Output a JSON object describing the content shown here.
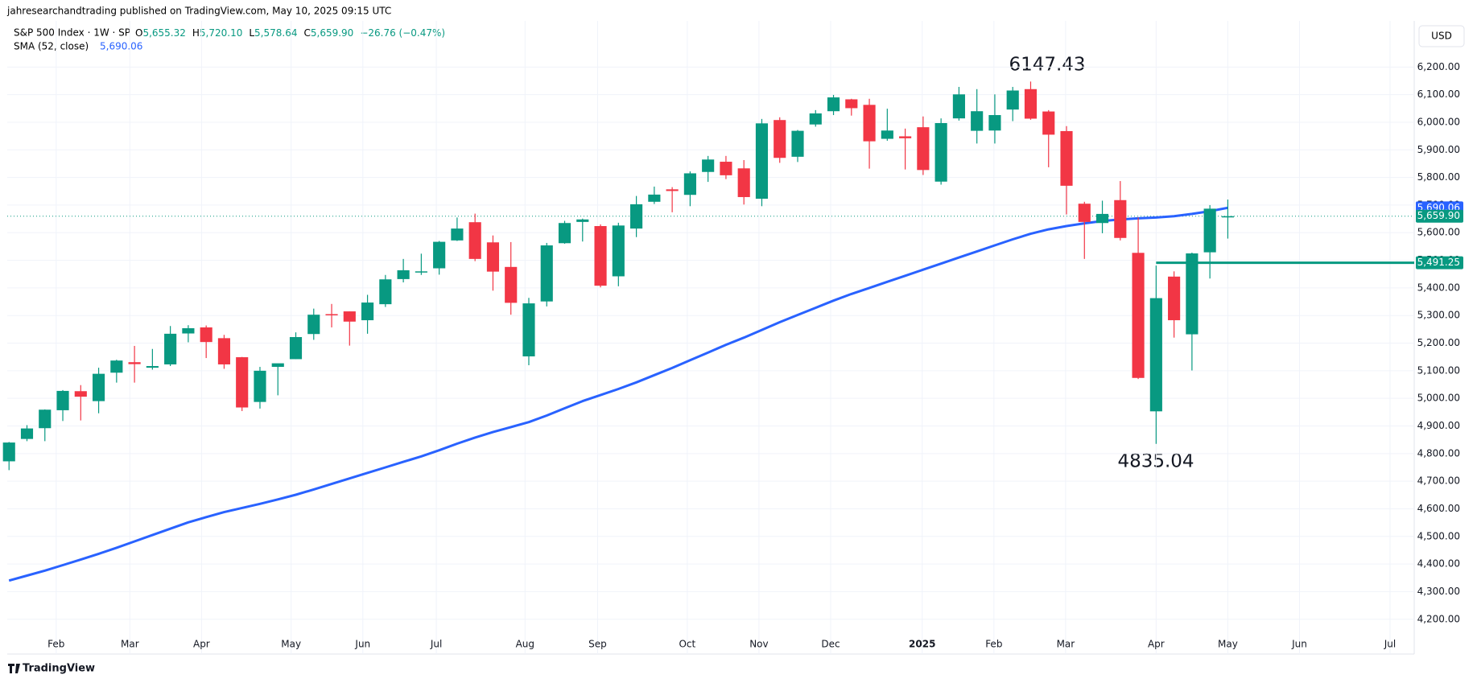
{
  "header": "jahresearchandtrading published on TradingView.com, May 10, 2025 09:15 UTC",
  "currency": "USD",
  "footer": "TradingView",
  "legend": {
    "symbol": "S&P 500 Index · 1W · SP",
    "ohlc": [
      {
        "key": "O",
        "value": "5,655.32"
      },
      {
        "key": "H",
        "value": "5,720.10"
      },
      {
        "key": "L",
        "value": "5,578.64"
      },
      {
        "key": "C",
        "value": "5,659.90"
      }
    ],
    "change": "−26.76 (−0.47%)",
    "sma_name": "SMA (52, close)",
    "sma_value": "5,690.06"
  },
  "chart_data": {
    "type": "candlestick",
    "annotations": [
      "6147.43",
      "4835.04"
    ],
    "up_color": "#089981",
    "down_color": "#f23645",
    "open": [
      4772,
      4853,
      4892,
      4957,
      5026,
      4990,
      5093,
      5131,
      5111,
      5123,
      5235,
      5257,
      5218,
      5149,
      4987,
      5114,
      5142,
      5233,
      5305,
      5315,
      5283,
      5341,
      5432,
      5459,
      5471,
      5572,
      5638,
      5565,
      5476,
      5152,
      5351,
      5562,
      5639,
      5624,
      5442,
      5615,
      5712,
      5757,
      5737,
      5820,
      5857,
      5833,
      5723,
      6008,
      5875,
      5992,
      6040,
      6083,
      6063,
      5940,
      5949,
      5982,
      5785,
      6014,
      5969,
      5970,
      6046,
      6120,
      6039,
      5968,
      5705,
      5635,
      5718,
      5527,
      4953,
      5441,
      5232,
      5529,
      5655.32
    ],
    "high": [
      4842,
      4903,
      4960,
      5030,
      5048,
      5111,
      5140,
      5190,
      5179,
      5262,
      5265,
      5264,
      5230,
      5150,
      5114,
      5123,
      5239,
      5325,
      5342,
      5315,
      5375,
      5447,
      5505,
      5524,
      5570,
      5655,
      5669,
      5590,
      5566,
      5364,
      5563,
      5643,
      5651,
      5630,
      5636,
      5733,
      5767,
      5765,
      5822,
      5878,
      5878,
      5863,
      6012,
      6018,
      5972,
      6044,
      6099,
      6085,
      6085,
      6049,
      5977,
      6021,
      6014,
      6128,
      6120,
      6101,
      6128,
      6147.43,
      6044,
      5986,
      5712,
      5716,
      5787,
      5655,
      5481,
      5460,
      5528,
      5700,
      5720.1
    ],
    "low": [
      4740,
      4845,
      4845,
      4918,
      4920,
      4946,
      5057,
      5057,
      5104,
      5117,
      5203,
      5146,
      5107,
      4954,
      4963,
      5011,
      5142,
      5212,
      5257,
      5191,
      5234,
      5331,
      5420,
      5447,
      5448,
      5570,
      5497,
      5390,
      5303,
      5120,
      5333,
      5560,
      5568,
      5402,
      5406,
      5584,
      5704,
      5674,
      5696,
      5784,
      5794,
      5702,
      5696,
      5853,
      5856,
      5984,
      6026,
      6024,
      5832,
      5933,
      5829,
      5809,
      5774,
      6006,
      5923,
      5923,
      6004,
      6009,
      5837,
      5666,
      5505,
      5598,
      5572,
      5070,
      4835.04,
      5220,
      5101,
      5434,
      5578.64
    ],
    "close": [
      4840,
      4891,
      4959,
      5027,
      5006,
      5089,
      5137,
      5124,
      5117,
      5234,
      5254,
      5204,
      5123,
      4967,
      5100,
      5127,
      5222,
      5303,
      5304,
      5278,
      5347,
      5431,
      5464,
      5460,
      5567,
      5615,
      5505,
      5459,
      5346,
      5344,
      5554,
      5635,
      5648,
      5408,
      5626,
      5703,
      5738,
      5751,
      5815,
      5865,
      5808,
      5729,
      5996,
      5871,
      5969,
      6032,
      6090,
      6051,
      5931,
      5970,
      5942,
      5827,
      5997,
      6101,
      6040,
      6026,
      6115,
      6013,
      5955,
      5770,
      5639,
      5668,
      5581,
      5074,
      5363,
      5283,
      5525,
      5687,
      5659.9
    ],
    "series": [
      {
        "name": "SMA (52, close)",
        "color": "#2962ff",
        "values": [
          4340,
          4358,
          4376,
          4396,
          4416,
          4437,
          4459,
          4482,
          4505,
          4528,
          4551,
          4570,
          4588,
          4603,
          4618,
          4634,
          4651,
          4670,
          4690,
          4710,
          4730,
          4750,
          4770,
          4790,
          4812,
          4836,
          4858,
          4878,
          4896,
          4914,
          4938,
          4964,
          4990,
          5012,
          5034,
          5058,
          5084,
          5110,
          5138,
          5166,
          5194,
          5220,
          5248,
          5276,
          5302,
          5328,
          5354,
          5378,
          5400,
          5422,
          5444,
          5466,
          5488,
          5510,
          5532,
          5554,
          5576,
          5596,
          5612,
          5624,
          5634,
          5642,
          5648,
          5652,
          5655,
          5660,
          5668,
          5678,
          5690.06
        ]
      }
    ],
    "level": {
      "value": 5491.25,
      "from": 64
    },
    "price_labels": [
      {
        "value": 5690.06,
        "label": "5,690.06",
        "color": "#2962ff"
      },
      {
        "value": 5659.9,
        "label": "5,659.90",
        "color": "#089981"
      },
      {
        "value": 5491.25,
        "label": "5,491.25",
        "color": "#089981"
      }
    ],
    "xlim": [
      -0.1,
      78.4
    ],
    "xticks": [
      {
        "value": 2.63,
        "label": "Feb"
      },
      {
        "value": 6.74,
        "label": "Mar"
      },
      {
        "value": 10.74,
        "label": "Apr"
      },
      {
        "value": 15.74,
        "label": "May"
      },
      {
        "value": 19.74,
        "label": "Jun"
      },
      {
        "value": 23.84,
        "label": "Jul"
      },
      {
        "value": 28.79,
        "label": "Aug"
      },
      {
        "value": 32.84,
        "label": "Sep"
      },
      {
        "value": 37.84,
        "label": "Oct"
      },
      {
        "value": 41.84,
        "label": "Nov"
      },
      {
        "value": 45.84,
        "label": "Dec"
      },
      {
        "value": 50.95,
        "label": "2025"
      },
      {
        "value": 54.95,
        "label": "Feb"
      },
      {
        "value": 58.95,
        "label": "Mar"
      },
      {
        "value": 64.0,
        "label": "Apr"
      },
      {
        "value": 68.0,
        "label": "May"
      },
      {
        "value": 72.0,
        "label": "Jun"
      },
      {
        "value": 77.05,
        "label": "Jul"
      }
    ],
    "ylim": [
      4074,
      6367
    ],
    "yticks": [
      {
        "value": 4200,
        "label": "4,200.00"
      },
      {
        "value": 4300,
        "label": "4,300.00"
      },
      {
        "value": 4400,
        "label": "4,400.00"
      },
      {
        "value": 4500,
        "label": "4,500.00"
      },
      {
        "value": 4600,
        "label": "4,600.00"
      },
      {
        "value": 4700,
        "label": "4,700.00"
      },
      {
        "value": 4800,
        "label": "4,800.00"
      },
      {
        "value": 4900,
        "label": "4,900.00"
      },
      {
        "value": 5000,
        "label": "5,000.00"
      },
      {
        "value": 5100,
        "label": "5,100.00"
      },
      {
        "value": 5200,
        "label": "5,200.00"
      },
      {
        "value": 5300,
        "label": "5,300.00"
      },
      {
        "value": 5400,
        "label": "5,400.00"
      },
      {
        "value": 5500,
        "label": "5,500.00"
      },
      {
        "value": 5600,
        "label": "5,600.00"
      },
      {
        "value": 5700,
        "label": "5,700.00"
      },
      {
        "value": 5800,
        "label": "5,800.00"
      },
      {
        "value": 5900,
        "label": "5,900.00"
      },
      {
        "value": 6000,
        "label": "6,000.00"
      },
      {
        "value": 6100,
        "label": "6,100.00"
      },
      {
        "value": 6200,
        "label": "6,200.00"
      }
    ],
    "grid": true
  }
}
